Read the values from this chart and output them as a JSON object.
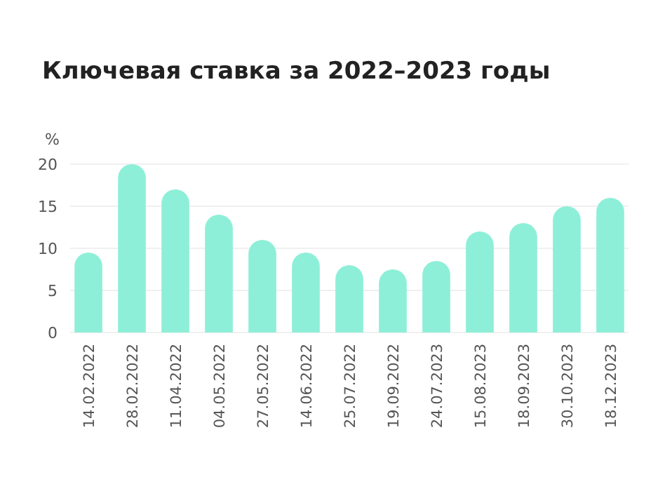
{
  "chart_data": {
    "type": "bar",
    "title": "Ключевая ставка за 2022–2023 годы",
    "ylabel": "%",
    "categories": [
      "14.02.2022",
      "28.02.2022",
      "11.04.2022",
      "04.05.2022",
      "27.05.2022",
      "14.06.2022",
      "25.07.2022",
      "19.09.2022",
      "24.07.2023",
      "15.08.2023",
      "18.09.2023",
      "30.10.2023",
      "18.12.2023"
    ],
    "values": [
      9.5,
      20,
      17,
      14,
      11,
      9.5,
      8,
      7.5,
      8.5,
      12,
      13,
      15,
      16
    ],
    "color": "#8eefd8",
    "ylim": [
      0,
      20
    ],
    "yticks": [
      0,
      5,
      10,
      15,
      20
    ],
    "grid": "y"
  }
}
